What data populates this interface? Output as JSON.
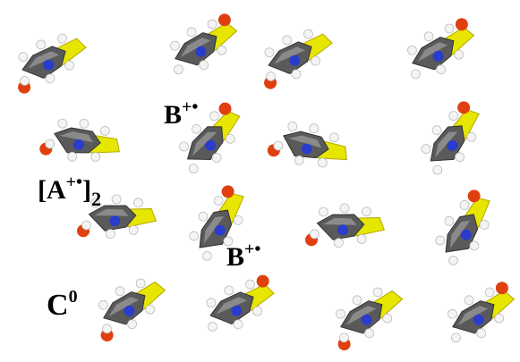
{
  "labels": [
    {
      "base": "B",
      "sup": "+•"
    },
    {
      "base": "[A",
      "sup": "+•",
      "close": "]",
      "sub": "2"
    },
    {
      "base": "B",
      "sup": "+•"
    },
    {
      "base": "C",
      "sup": "0"
    }
  ]
}
